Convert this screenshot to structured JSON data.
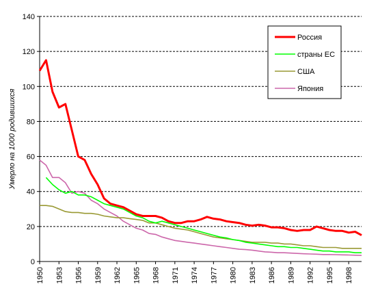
{
  "chart_data": {
    "type": "line",
    "title": "",
    "xlabel": "",
    "ylabel": "Умерло на 1000 родившихся",
    "xlim": [
      1950,
      2000
    ],
    "ylim": [
      0,
      140
    ],
    "y_ticks": [
      0,
      20,
      40,
      60,
      80,
      100,
      120,
      140
    ],
    "x_ticks": [
      1950,
      1953,
      1956,
      1959,
      1962,
      1965,
      1968,
      1971,
      1974,
      1977,
      1980,
      1983,
      1986,
      1989,
      1992,
      1995,
      1998
    ],
    "grid": "horizontal dashed",
    "legend_position": "top-right",
    "series": [
      {
        "name": "Россия",
        "color": "#ff0000",
        "x": [
          1950,
          1951,
          1952,
          1953,
          1954,
          1955,
          1956,
          1957,
          1958,
          1959,
          1960,
          1961,
          1962,
          1963,
          1964,
          1965,
          1966,
          1967,
          1968,
          1969,
          1970,
          1971,
          1972,
          1973,
          1974,
          1975,
          1976,
          1977,
          1978,
          1979,
          1980,
          1981,
          1982,
          1983,
          1984,
          1985,
          1986,
          1987,
          1988,
          1989,
          1990,
          1991,
          1992,
          1993,
          1994,
          1995,
          1996,
          1997,
          1998,
          1999,
          2000
        ],
        "values": [
          109,
          115,
          97,
          88,
          90,
          75,
          60,
          58,
          50,
          44,
          36,
          33,
          32,
          31,
          29,
          27,
          26,
          26,
          26,
          25,
          23,
          22,
          22,
          23,
          23,
          24,
          25.5,
          24.5,
          24,
          23,
          22.5,
          22,
          21,
          20.5,
          21,
          20.5,
          19.5,
          19.5,
          19,
          18,
          17.5,
          18,
          18,
          20,
          19,
          18,
          17.5,
          17.5,
          16.5,
          17,
          15
        ]
      },
      {
        "name": "страны ЕС",
        "color": "#00ff00",
        "x": [
          1951,
          1952,
          1953,
          1954,
          1955,
          1956,
          1957,
          1958,
          1959,
          1960,
          1961,
          1962,
          1963,
          1964,
          1965,
          1966,
          1967,
          1968,
          1969,
          1970,
          1971,
          1972,
          1973,
          1974,
          1975,
          1976,
          1977,
          1978,
          1979,
          1980,
          1981,
          1982,
          1983,
          1984,
          1985,
          1986,
          1987,
          1988,
          1989,
          1990,
          1991,
          1992,
          1993,
          1994,
          1995,
          1996,
          1997,
          1998,
          1999,
          2000
        ],
        "values": [
          48,
          44,
          41,
          39,
          40,
          38,
          38,
          37,
          35,
          33,
          32,
          31,
          30,
          28,
          26,
          25,
          23,
          22,
          23,
          22,
          21,
          20,
          19,
          18,
          17,
          16,
          15,
          14,
          13.5,
          12.5,
          12,
          11,
          10.5,
          10,
          9.5,
          9,
          8.5,
          8.5,
          8,
          8,
          7.5,
          7,
          6.5,
          6,
          6,
          5.5,
          5.5,
          5.5,
          5,
          5
        ]
      },
      {
        "name": "США",
        "color": "#999933",
        "x": [
          1950,
          1951,
          1952,
          1953,
          1954,
          1955,
          1956,
          1957,
          1958,
          1959,
          1960,
          1961,
          1962,
          1963,
          1964,
          1965,
          1966,
          1967,
          1968,
          1969,
          1970,
          1971,
          1972,
          1973,
          1974,
          1975,
          1976,
          1977,
          1978,
          1979,
          1980,
          1981,
          1982,
          1983,
          1984,
          1985,
          1986,
          1987,
          1988,
          1989,
          1990,
          1991,
          1992,
          1993,
          1994,
          1995,
          1996,
          1997,
          1998,
          1999,
          2000
        ],
        "values": [
          32,
          32,
          31.5,
          30,
          28.5,
          28,
          28,
          27.5,
          27.5,
          27,
          26,
          25.5,
          25,
          25,
          24.5,
          24,
          23.5,
          22,
          22,
          21,
          20,
          19,
          18.5,
          18,
          17,
          16,
          15,
          14,
          13.5,
          13,
          12.5,
          12,
          11.5,
          11,
          11,
          11,
          10.5,
          10.5,
          10,
          10,
          9.5,
          9,
          9,
          8.5,
          8,
          8,
          8,
          7.5,
          7.5,
          7.5,
          7.5
        ]
      },
      {
        "name": "Япония",
        "color": "#cc66aa",
        "x": [
          1950,
          1951,
          1952,
          1953,
          1954,
          1955,
          1956,
          1957,
          1958,
          1959,
          1960,
          1961,
          1962,
          1963,
          1964,
          1965,
          1966,
          1967,
          1968,
          1969,
          1970,
          1971,
          1972,
          1973,
          1974,
          1975,
          1976,
          1977,
          1978,
          1979,
          1980,
          1981,
          1982,
          1983,
          1984,
          1985,
          1986,
          1987,
          1988,
          1989,
          1990,
          1991,
          1992,
          1993,
          1994,
          1995,
          1996,
          1997,
          1998,
          1999,
          2000
        ],
        "values": [
          58,
          55,
          48,
          48,
          45,
          39,
          40,
          39,
          35,
          33,
          30,
          28,
          26,
          23,
          21,
          19,
          18,
          16,
          15.5,
          14,
          13,
          12,
          11.5,
          11,
          10.5,
          10,
          9.5,
          9,
          8.5,
          8,
          7.5,
          7,
          6.8,
          6.5,
          6,
          5.5,
          5.3,
          5,
          5,
          4.8,
          4.6,
          4.4,
          4.3,
          4.2,
          4,
          4,
          3.9,
          3.8,
          3.7,
          3.6,
          3.5
        ]
      }
    ]
  }
}
